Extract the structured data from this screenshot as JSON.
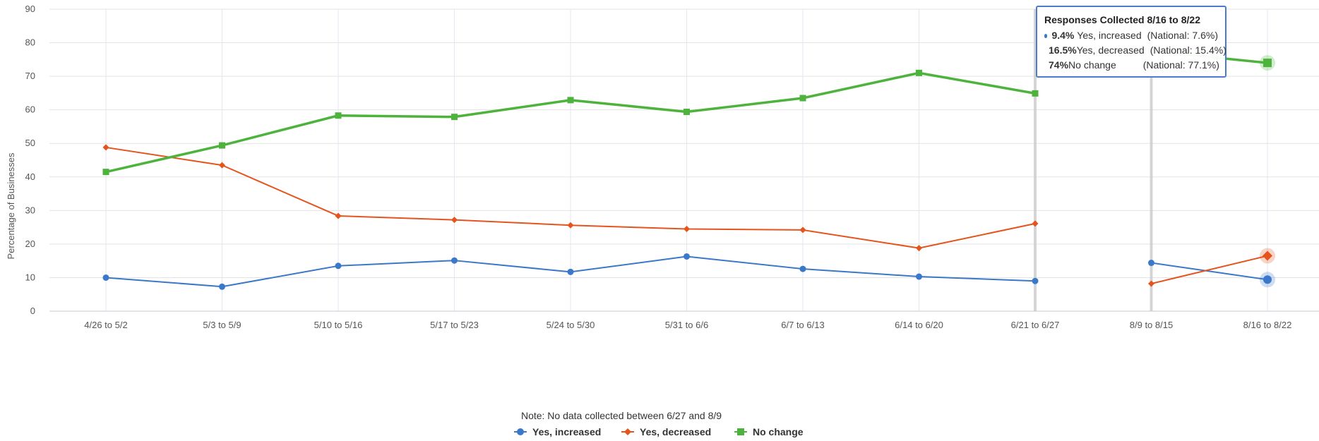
{
  "chart_data": {
    "type": "line",
    "ylabel": "Percentage of Businesses",
    "xlabel": "",
    "ylim": [
      0,
      90
    ],
    "yticks": [
      "0",
      "10",
      "20",
      "30",
      "40",
      "50",
      "60",
      "70",
      "80",
      "90"
    ],
    "grid": true,
    "legend_position": "bottom",
    "categories": [
      "4/26 to 5/2",
      "5/3 to 5/9",
      "5/10 to 5/16",
      "5/17 to 5/23",
      "5/24 to 5/30",
      "5/31 to 6/6",
      "6/7 to 6/13",
      "6/14 to 6/20",
      "6/21 to 6/27",
      "8/9 to 8/15",
      "8/16 to 8/22"
    ],
    "series": [
      {
        "name": "Yes, increased",
        "color": "#3a78c9",
        "marker": "circle",
        "values": [
          10,
          7.3,
          13.5,
          15.1,
          11.7,
          16.3,
          12.6,
          10.3,
          9,
          14.4,
          9.4
        ]
      },
      {
        "name": "Yes, decreased",
        "color": "#e5541c",
        "marker": "diamond",
        "values": [
          48.8,
          43.5,
          28.4,
          27.2,
          25.6,
          24.5,
          24.2,
          18.8,
          26.1,
          8.2,
          16.5
        ]
      },
      {
        "name": "No change",
        "color": "#4db33d",
        "marker": "square",
        "values": [
          41.5,
          49.4,
          58.3,
          57.9,
          62.9,
          59.4,
          63.5,
          71,
          64.9,
          77.5,
          74
        ]
      }
    ],
    "gap_after_index": 8,
    "highlighted_index": 10,
    "note": "Note: No data collected between 6/27 and 8/9"
  },
  "tooltip": {
    "title": "Responses Collected 8/16 to 8/22",
    "rows": [
      {
        "value": "9.4%",
        "name": "Yes, increased",
        "national": "(National: 7.6%)",
        "color": "#3a78c9"
      },
      {
        "value": "16.5%",
        "name": "Yes, decreased",
        "national": "(National: 15.4%)",
        "color": "#e5541c"
      },
      {
        "value": "74%",
        "name": "No change",
        "national": "(National: 77.1%)",
        "color": "#4db33d"
      }
    ]
  }
}
